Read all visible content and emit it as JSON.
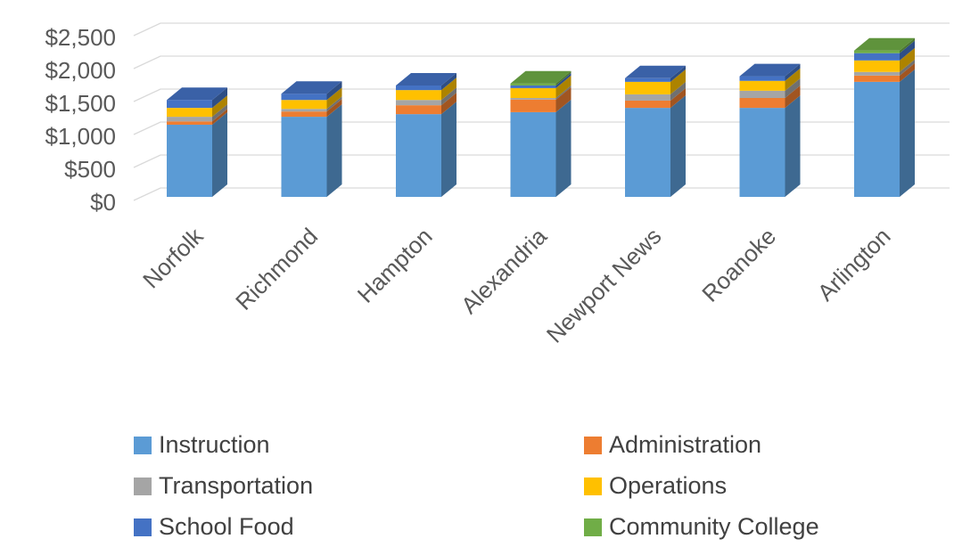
{
  "chart_data": {
    "type": "bar3d_stacked",
    "categories": [
      "Norfolk",
      "Richmond",
      "Hampton",
      "Alexandria",
      "Newport News",
      "Roanoke",
      "Arlington"
    ],
    "series": [
      {
        "name": "Instruction",
        "color": "#5b9bd5",
        "values": [
          1095,
          1215,
          1255,
          1285,
          1350,
          1350,
          1745
        ]
      },
      {
        "name": "Administration",
        "color": "#ed7d31",
        "values": [
          50,
          80,
          135,
          190,
          110,
          150,
          95
        ]
      },
      {
        "name": "Transportation",
        "color": "#a5a5a5",
        "values": [
          70,
          40,
          80,
          25,
          95,
          110,
          55
        ]
      },
      {
        "name": "Operations",
        "color": "#ffc000",
        "values": [
          135,
          135,
          150,
          150,
          190,
          150,
          175
        ]
      },
      {
        "name": "School Food",
        "color": "#4472c4",
        "values": [
          120,
          95,
          70,
          40,
          55,
          70,
          110
        ]
      },
      {
        "name": "Community College",
        "color": "#70ad47",
        "values": [
          0,
          0,
          0,
          30,
          0,
          0,
          40
        ]
      }
    ],
    "ylim": [
      0,
      2500
    ],
    "yticks": [
      {
        "value": 0,
        "label": "$0"
      },
      {
        "value": 500,
        "label": "$500"
      },
      {
        "value": 1000,
        "label": "$1,000"
      },
      {
        "value": 1500,
        "label": "$1,500"
      },
      {
        "value": 2000,
        "label": "$2,000"
      },
      {
        "value": 2500,
        "label": "$2,500"
      }
    ],
    "grid": true,
    "legend": "bottom"
  }
}
